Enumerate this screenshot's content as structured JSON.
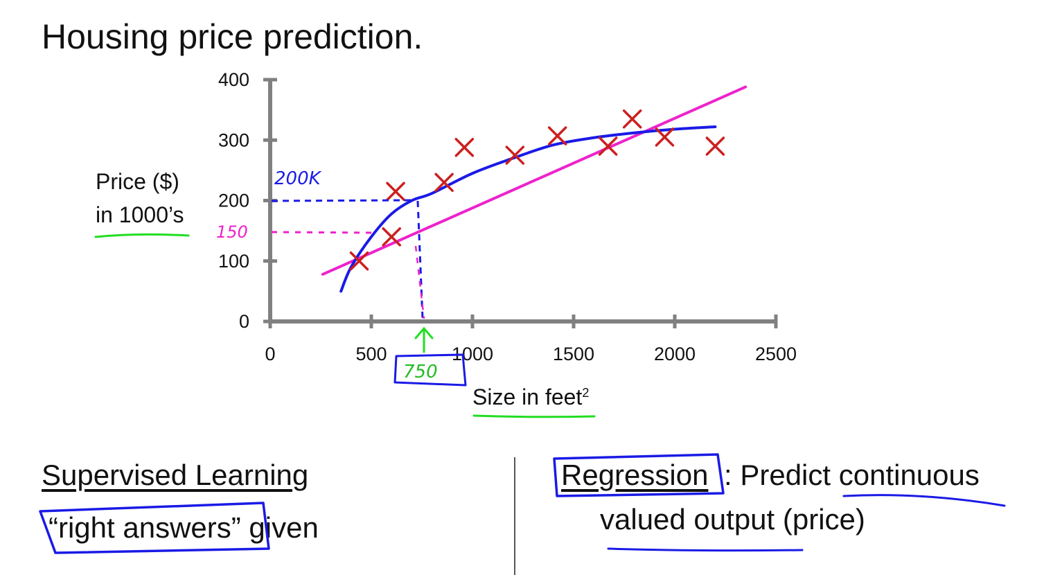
{
  "slide": {
    "title": "Housing price prediction.",
    "bottom_left": {
      "heading": "Supervised Learning",
      "line": "“right answers” given"
    },
    "bottom_right": {
      "term": "Regression",
      "rest": ": Predict continuous",
      "line2": "valued output (price)"
    }
  },
  "annotations": {
    "y_200": "200K",
    "y_150": "150",
    "x_750": "750"
  },
  "colors": {
    "axis": "#808080",
    "points": "#cc1f1f",
    "curve": "#1a1ae6",
    "line": "#ee22cc",
    "highlight": "#22dd22"
  },
  "chart_data": {
    "type": "scatter",
    "title": "",
    "xlabel": "Size in feet",
    "xlabel_sup": "2",
    "ylabel_lines": [
      "Price ($)",
      "in 1000’s"
    ],
    "xlim": [
      0,
      2500
    ],
    "ylim": [
      0,
      400
    ],
    "x_ticks": [
      0,
      500,
      1000,
      1500,
      2000,
      2500
    ],
    "y_ticks": [
      0,
      100,
      200,
      300,
      400
    ],
    "points": [
      {
        "x": 440,
        "y": 100
      },
      {
        "x": 600,
        "y": 140
      },
      {
        "x": 620,
        "y": 215
      },
      {
        "x": 860,
        "y": 230
      },
      {
        "x": 960,
        "y": 288
      },
      {
        "x": 1210,
        "y": 275
      },
      {
        "x": 1420,
        "y": 307
      },
      {
        "x": 1670,
        "y": 290
      },
      {
        "x": 1790,
        "y": 335
      },
      {
        "x": 1950,
        "y": 305
      },
      {
        "x": 2200,
        "y": 290
      }
    ],
    "series": [
      {
        "type": "curve",
        "x": [
          350,
          400,
          500,
          600,
          700,
          800,
          1000,
          1200,
          1400,
          1600,
          1800,
          2000,
          2200
        ],
        "y": [
          50,
          90,
          140,
          178,
          200,
          212,
          245,
          270,
          292,
          304,
          312,
          318,
          322
        ]
      },
      {
        "type": "line",
        "x": [
          260,
          2350
        ],
        "y": [
          78,
          388
        ]
      }
    ]
  }
}
